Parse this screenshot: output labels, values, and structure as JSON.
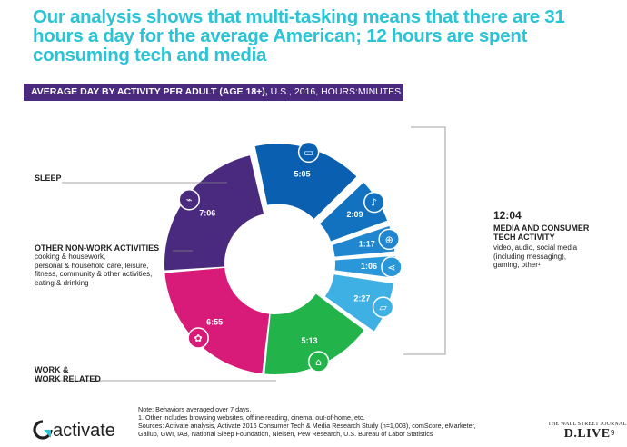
{
  "title": "Our analysis shows that multi-tasking means that there are 31 hours a day for the average American; 12 hours are spent consuming tech and media",
  "banner": {
    "bold": "AVERAGE DAY BY ACTIVITY PER ADULT (AGE 18+),",
    "rest": " U.S., 2016, HOURS:MINUTES"
  },
  "labels": {
    "sleep": "SLEEP",
    "other_title": "OTHER NON-WORK ACTIVITIES",
    "other_sub": [
      "cooking & housework,",
      "personal & household care, leisure,",
      "fitness, community & other activities,",
      "eating & drinking"
    ],
    "work": [
      "WORK &",
      "WORK RELATED"
    ],
    "media_time": "12:04",
    "media_title": [
      "MEDIA AND CONSUMER",
      "TECH ACTIVITY"
    ],
    "media_sub": [
      "video, audio, social media",
      "(including messaging),",
      "gaming, other¹"
    ]
  },
  "chart_data": {
    "type": "pie",
    "style": "donut",
    "unit": "hours:minutes",
    "slices": [
      {
        "label": "video",
        "value": "5:05",
        "minutes": 305,
        "color": "#0b5fb0",
        "group": "media"
      },
      {
        "label": "audio",
        "value": "2:09",
        "minutes": 129,
        "color": "#1372c0",
        "group": "media"
      },
      {
        "label": "gaming",
        "value": "1:17",
        "minutes": 77,
        "color": "#1f86cf",
        "group": "media"
      },
      {
        "label": "social media (including messaging)",
        "value": "1:06",
        "minutes": 66,
        "color": "#2a97da",
        "group": "media"
      },
      {
        "label": "other",
        "value": "2:27",
        "minutes": 147,
        "color": "#3fb0e3",
        "group": "media"
      },
      {
        "label": "work & work related",
        "value": "5:13",
        "minutes": 313,
        "color": "#22b44a",
        "group": "work"
      },
      {
        "label": "other non-work activities",
        "value": "6:55",
        "minutes": 415,
        "color": "#d81b78",
        "group": "other"
      },
      {
        "label": "sleep",
        "value": "7:06",
        "minutes": 426,
        "color": "#4a2a7e",
        "group": "sleep"
      }
    ],
    "total": "31 hours"
  },
  "notes": [
    "Note: Behaviors averaged over 7 days.",
    "1. Other includes browsing websites, offline reading, cinema, out-of-home, etc.",
    "Sources: Activate analysis, Activate 2016 Consumer Tech & Media Research Study (n=1,003), comScore, eMarketer,",
    "Gallup, GWI, IAB, National Sleep Foundation, Nielsen, Pew Research, U.S. Bureau of Labor Statistics"
  ],
  "footer": {
    "logo": "activate",
    "wsj_top": "THE WALL STREET JOURNAL",
    "wsj_bottom": "D.LIVE",
    "page": "9"
  },
  "colors": {
    "title": "#2bc3d6",
    "banner": "#4a2a7e"
  }
}
